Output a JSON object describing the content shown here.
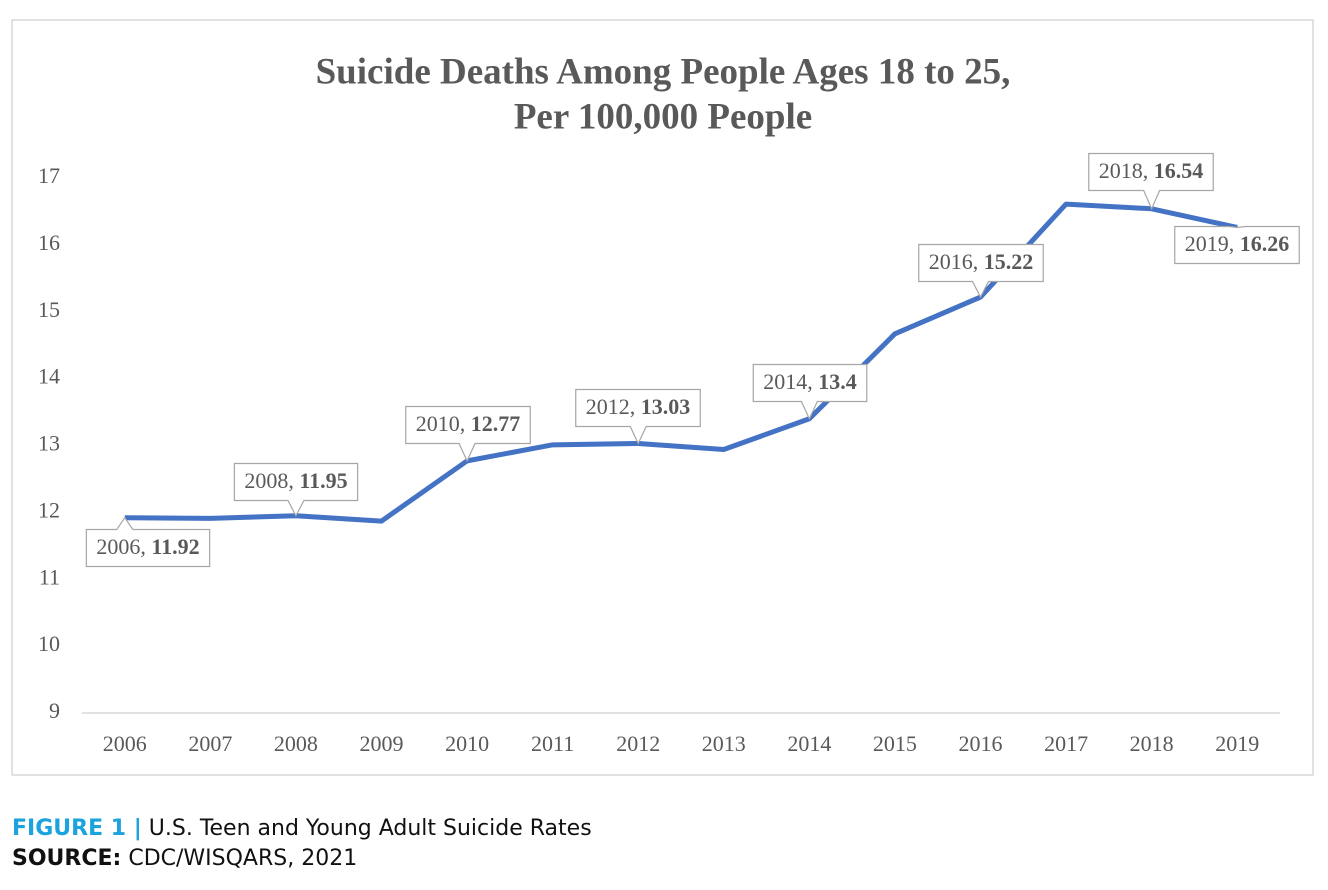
{
  "chart_data": {
    "type": "line",
    "title": [
      "Suicide Deaths Among People Ages 18 to 25,",
      "Per 100,000 People"
    ],
    "categories": [
      "2006",
      "2007",
      "2008",
      "2009",
      "2010",
      "2011",
      "2012",
      "2013",
      "2014",
      "2015",
      "2016",
      "2017",
      "2018",
      "2019"
    ],
    "series": [
      {
        "name": "Suicide deaths per 100,000",
        "color": "#4472c4",
        "values": [
          11.92,
          11.91,
          11.95,
          11.87,
          12.77,
          13.01,
          13.03,
          12.94,
          13.4,
          14.67,
          15.22,
          16.61,
          16.54,
          16.26
        ],
        "value_labels": [
          "2006, 11.92",
          null,
          "2008, 11.95",
          null,
          "2010, 12.77",
          null,
          "2012, 13.03",
          null,
          "2014, 13.4",
          null,
          "2016, 15.22",
          null,
          "2018, 16.54",
          "2019, 16.26"
        ]
      }
    ],
    "ylim": [
      9,
      17
    ],
    "yticks": [
      9,
      10,
      11,
      12,
      13,
      14,
      15,
      16,
      17
    ],
    "grid": false
  },
  "caption": {
    "label": "FIGURE 1 |",
    "text": "U.S. Teen and Young Adult Suicide Rates"
  },
  "source": {
    "label": "SOURCE:",
    "text": "CDC/WISQARS, 2021"
  }
}
